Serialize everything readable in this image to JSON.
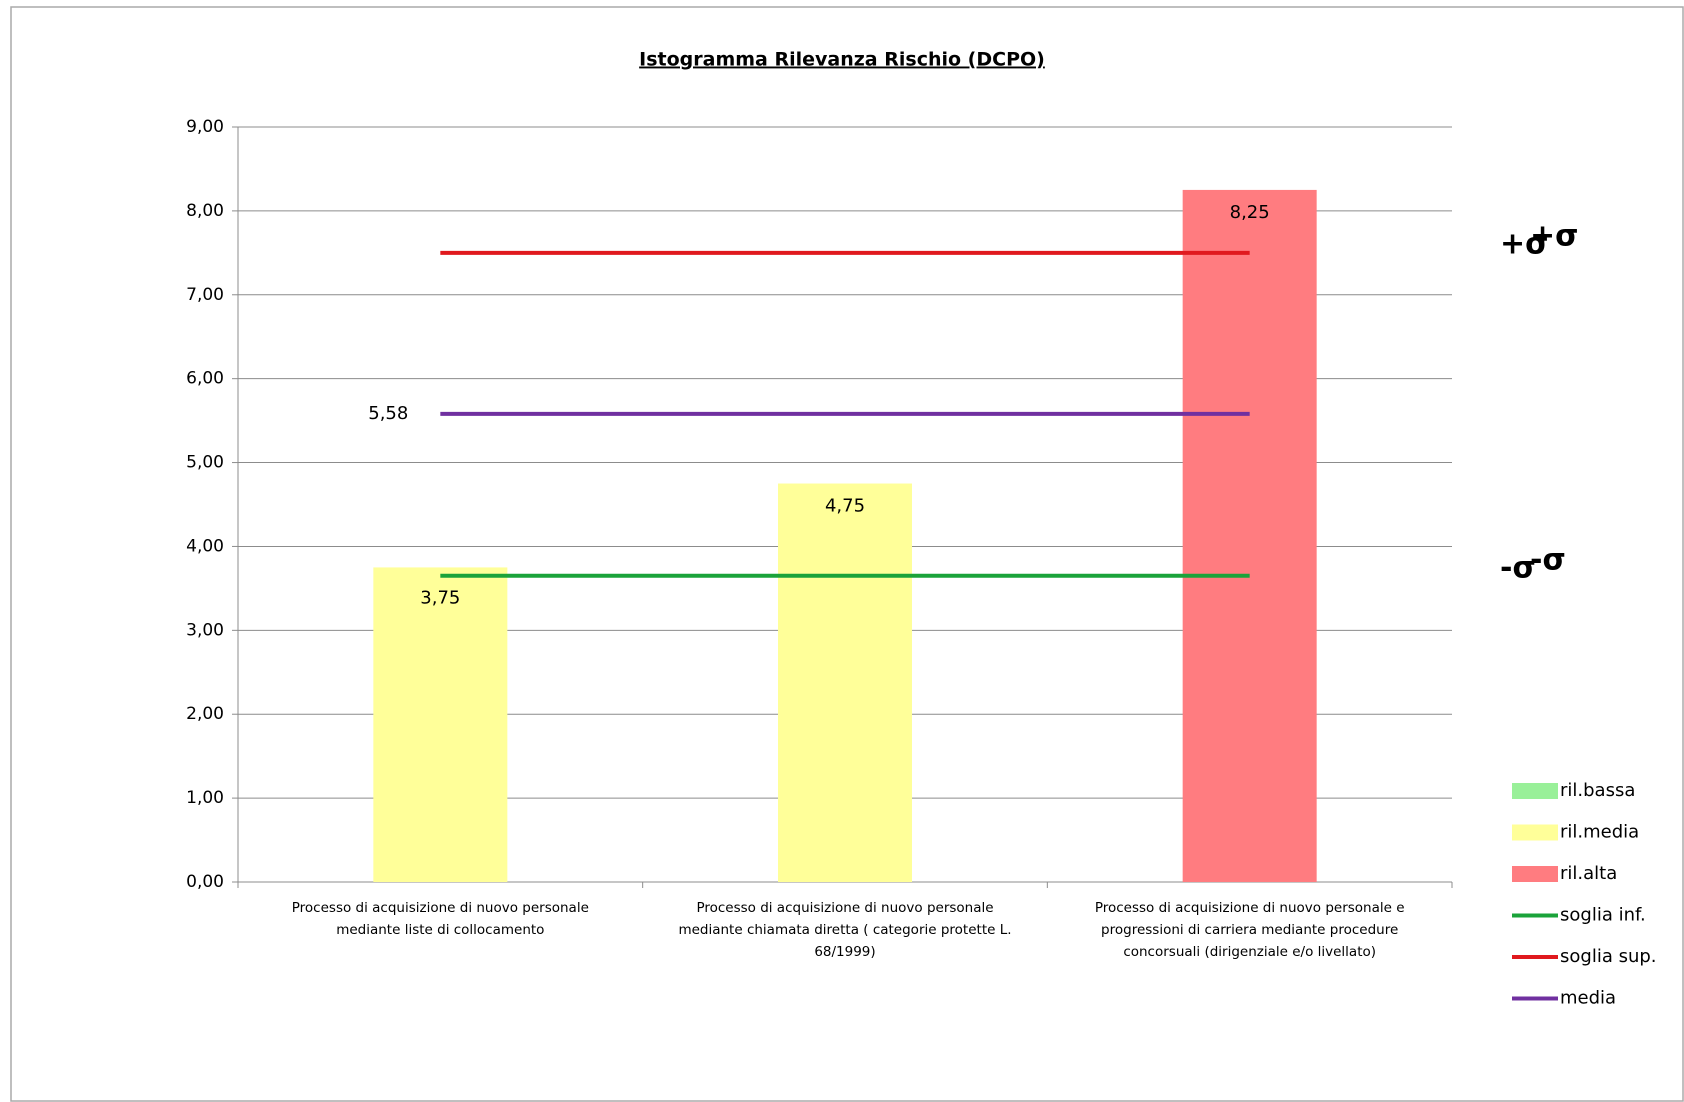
{
  "chart_data": {
    "type": "bar",
    "title": "Istogramma Rilevanza Rischio (DCPO)",
    "categories": [
      [
        "Processo di acquisizione di nuovo personale",
        "mediante liste di collocamento"
      ],
      [
        "Processo di acquisizione di nuovo personale",
        "mediante chiamata diretta ( categorie protette L.",
        "68/1999)"
      ],
      [
        "Processo di acquisizione di nuovo personale e",
        "progressioni di carriera mediante procedure",
        "concorsuali (dirigenziale e/o livellato)"
      ]
    ],
    "series": [
      {
        "name": "ril.bassa",
        "type": "bar",
        "color": "#99f099",
        "values": [
          null,
          null,
          null
        ]
      },
      {
        "name": "ril.media",
        "type": "bar",
        "color": "#ffff99",
        "values": [
          3.75,
          4.75,
          null
        ],
        "value_labels": [
          "3,75",
          "4,75",
          null
        ]
      },
      {
        "name": "ril.alta",
        "type": "bar",
        "color": "#ff7c80",
        "values": [
          null,
          null,
          8.25
        ],
        "value_labels": [
          null,
          null,
          "8,25"
        ]
      },
      {
        "name": "soglia inf.",
        "type": "line",
        "color": "#1aa33a",
        "values": [
          3.65,
          3.65,
          3.65
        ]
      },
      {
        "name": "soglia sup.",
        "type": "line",
        "color": "#e0191e",
        "values": [
          7.5,
          7.5,
          7.5
        ]
      },
      {
        "name": "media",
        "type": "line",
        "color": "#7030a0",
        "values": [
          5.58,
          5.58,
          5.58
        ],
        "value_labels": [
          "5,58",
          null,
          null
        ]
      }
    ],
    "ylim": [
      0,
      9
    ],
    "yticks": [
      {
        "value": 0,
        "label": "0,00"
      },
      {
        "value": 1,
        "label": "1,00"
      },
      {
        "value": 2,
        "label": "2,00"
      },
      {
        "value": 3,
        "label": "3,00"
      },
      {
        "value": 4,
        "label": "4,00"
      },
      {
        "value": 5,
        "label": "5,00"
      },
      {
        "value": 6,
        "label": "6,00"
      },
      {
        "value": 7,
        "label": "7,00"
      },
      {
        "value": 8,
        "label": "8,00"
      },
      {
        "value": 9,
        "label": "9,00"
      }
    ],
    "grid": true,
    "legend": "right",
    "annotations": [
      "+σ",
      "-σ"
    ]
  }
}
